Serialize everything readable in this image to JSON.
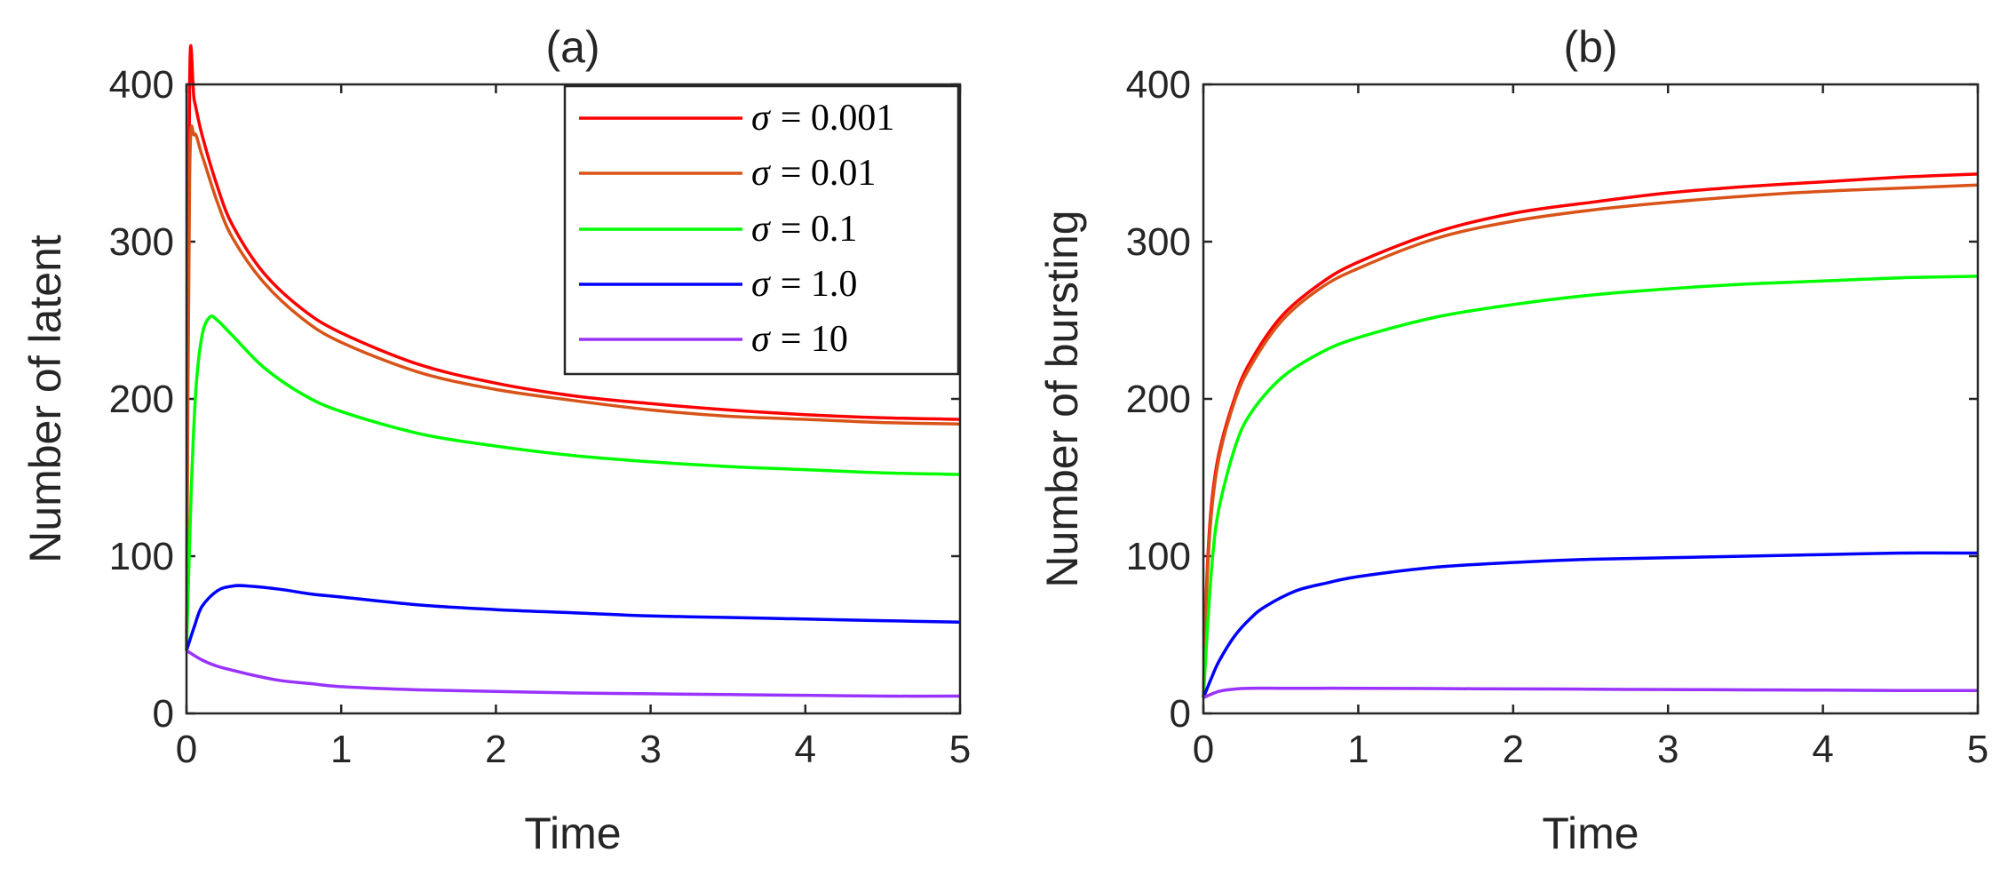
{
  "chart_data": [
    {
      "type": "line",
      "title": "(a)",
      "xlabel": "Time",
      "ylabel": "Number of latent",
      "xlim": [
        0,
        5
      ],
      "ylim": [
        0,
        400
      ],
      "xticks": [
        "0",
        "1",
        "2",
        "3",
        "4",
        "5"
      ],
      "yticks": [
        "0",
        "100",
        "200",
        "300",
        "400"
      ],
      "legend_position": "top-right",
      "series": [
        {
          "name": "σ = 0.001",
          "symbol": "σ",
          "value_text": "= 0.001",
          "color": "#ff0000",
          "x": [
            0,
            0.02,
            0.05,
            0.1,
            0.2,
            0.3,
            0.5,
            0.75,
            1,
            1.5,
            2,
            2.5,
            3,
            3.5,
            4,
            4.5,
            5
          ],
          "y": [
            40,
            400,
            390,
            368,
            335,
            310,
            280,
            257,
            242,
            222,
            210,
            202,
            197,
            193,
            190,
            188,
            187
          ]
        },
        {
          "name": "σ = 0.01",
          "symbol": "σ",
          "value_text": "= 0.01",
          "color": "#d95319",
          "x": [
            0,
            0.02,
            0.05,
            0.1,
            0.2,
            0.3,
            0.5,
            0.75,
            1,
            1.5,
            2,
            2.5,
            3,
            3.5,
            4,
            4.5,
            5
          ],
          "y": [
            40,
            340,
            368,
            355,
            325,
            302,
            274,
            251,
            236,
            217,
            206,
            199,
            193,
            189,
            187,
            185,
            184
          ]
        },
        {
          "name": "σ = 0.1",
          "symbol": "σ",
          "value_text": "= 0.1",
          "color": "#00ff00",
          "x": [
            0,
            0.03,
            0.06,
            0.1,
            0.15,
            0.2,
            0.3,
            0.5,
            0.75,
            1,
            1.5,
            2,
            2.5,
            3,
            3.5,
            4,
            4.5,
            5
          ],
          "y": [
            40,
            140,
            205,
            240,
            252,
            250,
            240,
            220,
            203,
            192,
            178,
            170,
            164,
            160,
            157,
            155,
            153,
            152
          ]
        },
        {
          "name": "σ = 1.0",
          "symbol": "σ",
          "value_text": "= 1.0",
          "color": "#0000ff",
          "x": [
            0,
            0.05,
            0.1,
            0.2,
            0.3,
            0.4,
            0.6,
            0.8,
            1,
            1.5,
            2,
            2.5,
            3,
            3.5,
            4,
            4.5,
            5
          ],
          "y": [
            40,
            55,
            68,
            78,
            81,
            81,
            79,
            76,
            74,
            69,
            66,
            64,
            62,
            61,
            60,
            59,
            58
          ]
        },
        {
          "name": "σ = 10",
          "symbol": "σ",
          "value_text": "= 10",
          "color": "#9933ff",
          "x": [
            0,
            0.1,
            0.2,
            0.4,
            0.6,
            0.8,
            1,
            1.5,
            2,
            2.5,
            3,
            3.5,
            4,
            4.5,
            5
          ],
          "y": [
            40,
            34,
            30,
            25,
            21,
            19,
            17,
            15,
            14,
            13,
            12.5,
            12,
            11.5,
            11,
            11
          ]
        }
      ]
    },
    {
      "type": "line",
      "title": "(b)",
      "xlabel": "Time",
      "ylabel": "Number of bursting",
      "xlim": [
        0,
        5
      ],
      "ylim": [
        0,
        400
      ],
      "xticks": [
        "0",
        "1",
        "2",
        "3",
        "4",
        "5"
      ],
      "yticks": [
        "0",
        "100",
        "200",
        "300",
        "400"
      ],
      "series": [
        {
          "name": "σ = 0.001",
          "color": "#ff0000",
          "x": [
            0,
            0.02,
            0.05,
            0.1,
            0.2,
            0.3,
            0.5,
            0.75,
            1,
            1.5,
            2,
            2.5,
            3,
            3.5,
            4,
            4.5,
            5
          ],
          "y": [
            10,
            80,
            130,
            165,
            200,
            223,
            252,
            273,
            287,
            306,
            318,
            325,
            331,
            335,
            338,
            341,
            343
          ]
        },
        {
          "name": "σ = 0.01",
          "color": "#d95319",
          "x": [
            0,
            0.02,
            0.05,
            0.1,
            0.2,
            0.3,
            0.5,
            0.75,
            1,
            1.5,
            2,
            2.5,
            3,
            3.5,
            4,
            4.5,
            5
          ],
          "y": [
            10,
            75,
            125,
            162,
            198,
            220,
            249,
            270,
            283,
            302,
            313,
            320,
            325,
            329,
            332,
            334,
            336
          ]
        },
        {
          "name": "σ = 0.1",
          "color": "#00ff00",
          "x": [
            0,
            0.03,
            0.06,
            0.1,
            0.2,
            0.3,
            0.5,
            0.75,
            1,
            1.5,
            2,
            2.5,
            3,
            3.5,
            4,
            4.5,
            5
          ],
          "y": [
            10,
            60,
            100,
            130,
            168,
            190,
            213,
            229,
            239,
            252,
            260,
            266,
            270,
            273,
            275,
            277,
            278
          ]
        },
        {
          "name": "σ = 1.0",
          "color": "#0000ff",
          "x": [
            0,
            0.05,
            0.1,
            0.2,
            0.3,
            0.4,
            0.6,
            0.8,
            1,
            1.5,
            2,
            2.5,
            3,
            3.5,
            4,
            4.5,
            5
          ],
          "y": [
            10,
            22,
            33,
            49,
            60,
            68,
            78,
            83,
            87,
            93,
            96,
            98,
            99,
            100,
            101,
            102,
            102
          ]
        },
        {
          "name": "σ = 10",
          "color": "#9933ff",
          "x": [
            0,
            0.1,
            0.2,
            0.3,
            0.5,
            0.75,
            1,
            1.5,
            2,
            2.5,
            3,
            3.5,
            4,
            4.5,
            5
          ],
          "y": [
            10,
            14,
            15.5,
            16,
            16,
            16,
            16,
            15.8,
            15.6,
            15.4,
            15.2,
            15,
            14.8,
            14.6,
            14.5
          ]
        }
      ]
    }
  ]
}
